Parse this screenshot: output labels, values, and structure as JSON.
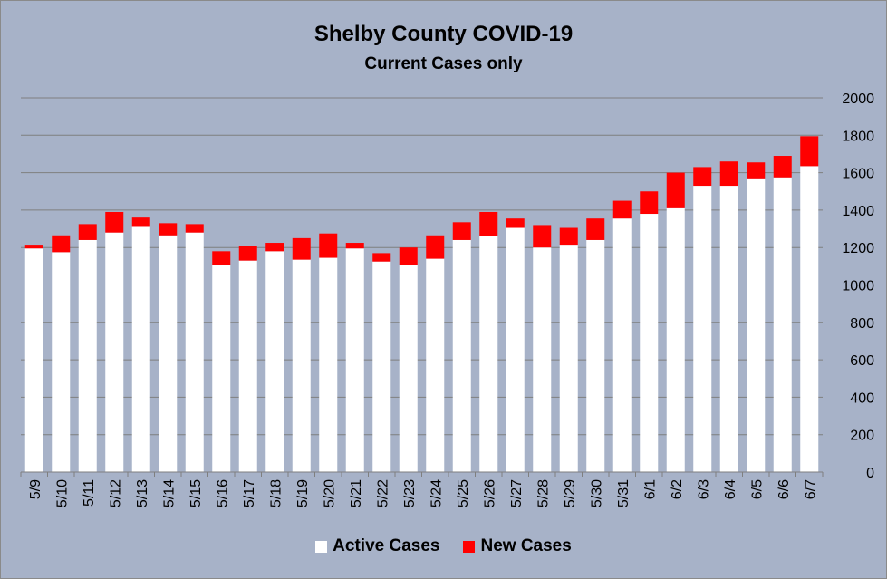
{
  "chart_data": {
    "type": "bar",
    "stacked": true,
    "title": "Shelby County COVID-19",
    "subtitle": "Current Cases only",
    "xlabel": "",
    "ylabel": "",
    "ylim": [
      0,
      2000
    ],
    "yticks": [
      0,
      200,
      400,
      600,
      800,
      1000,
      1200,
      1400,
      1600,
      1800,
      2000
    ],
    "y_axis_side": "right",
    "grid": true,
    "legend_position": "bottom",
    "categories": [
      "5/9",
      "5/10",
      "5/11",
      "5/12",
      "5/13",
      "5/14",
      "5/15",
      "5/16",
      "5/17",
      "5/18",
      "5/19",
      "5/20",
      "5/21",
      "5/22",
      "5/23",
      "5/24",
      "5/25",
      "5/26",
      "5/27",
      "5/28",
      "5/29",
      "5/30",
      "5/31",
      "6/1",
      "6/2",
      "6/3",
      "6/4",
      "6/5",
      "6/6",
      "6/7"
    ],
    "series": [
      {
        "name": "Active Cases",
        "color": "#ffffff",
        "values": [
          1195,
          1175,
          1240,
          1280,
          1315,
          1265,
          1280,
          1105,
          1130,
          1180,
          1135,
          1145,
          1195,
          1125,
          1105,
          1140,
          1240,
          1260,
          1305,
          1200,
          1215,
          1240,
          1355,
          1380,
          1410,
          1530,
          1530,
          1570,
          1575,
          1635
        ]
      },
      {
        "name": "New Cases",
        "color": "#ff0000",
        "values": [
          20,
          90,
          85,
          110,
          45,
          65,
          45,
          75,
          80,
          45,
          115,
          130,
          30,
          45,
          95,
          125,
          95,
          130,
          50,
          120,
          90,
          115,
          95,
          120,
          190,
          100,
          130,
          85,
          115,
          160
        ]
      }
    ]
  }
}
